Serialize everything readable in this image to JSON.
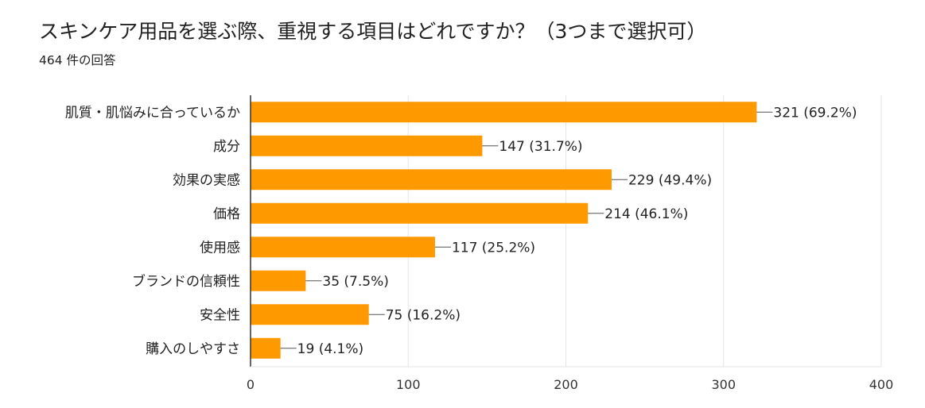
{
  "title": "スキンケア用品を選ぶ際、重視する項目はどれですか？（3つまで選択可）",
  "subtitle": "464 件の回答",
  "colors": {
    "bar": "#ff9900",
    "grid": "#e6e6e6",
    "axis": "#333333"
  },
  "chart_data": {
    "type": "bar",
    "orientation": "horizontal",
    "categories": [
      "肌質・肌悩みに合っているか",
      "成分",
      "効果の実感",
      "価格",
      "使用感",
      "ブランドの信頼性",
      "安全性",
      "購入のしやすさ"
    ],
    "values": [
      321,
      147,
      229,
      214,
      117,
      35,
      75,
      19
    ],
    "value_labels": [
      "321 (69.2%)",
      "147 (31.7%)",
      "229 (49.4%)",
      "214 (46.1%)",
      "117 (25.2%)",
      "35 (7.5%)",
      "75 (16.2%)",
      "19 (4.1%)"
    ],
    "xlim": [
      0,
      400
    ],
    "xticks": [
      0,
      100,
      200,
      300,
      400
    ],
    "grid": true
  }
}
